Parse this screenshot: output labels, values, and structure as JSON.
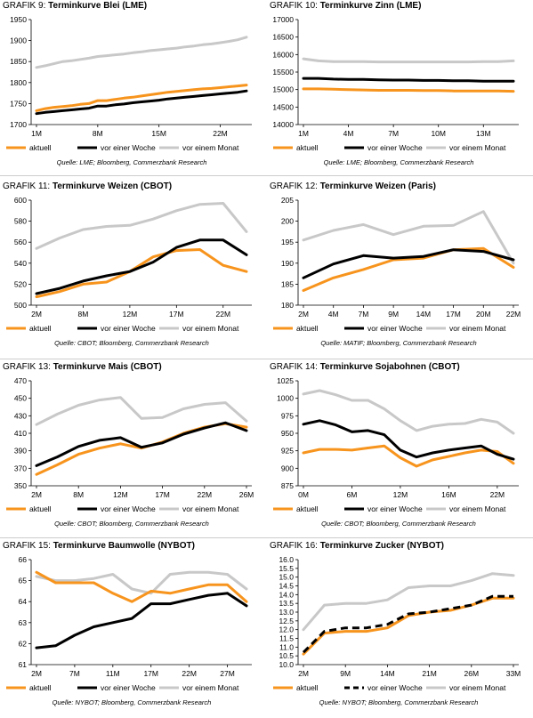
{
  "chart_data": [
    {
      "type": "line",
      "prefix": "GRAFIK 9:",
      "title": "Terminkurve Blei (LME)",
      "source": "Quelle: LME; Bloomberg, Commerzbank Research",
      "x_ticks": [
        "1M",
        "8M",
        "15M",
        "22M"
      ],
      "tick_idx": [
        0,
        7,
        14,
        21
      ],
      "ylim": [
        1700,
        1950
      ],
      "y_ticks": [
        1700,
        1750,
        1800,
        1850,
        1900,
        1950
      ],
      "series": [
        {
          "name": "aktuell",
          "color": "#f7941d",
          "dash": false,
          "values": [
            1733,
            1738,
            1741,
            1743,
            1745,
            1748,
            1750,
            1757,
            1757,
            1760,
            1763,
            1765,
            1768,
            1771,
            1774,
            1777,
            1779,
            1781,
            1783,
            1785,
            1786,
            1788,
            1790,
            1792,
            1794
          ]
        },
        {
          "name": "vor einer Woche",
          "color": "#000000",
          "dash": false,
          "values": [
            1726,
            1729,
            1731,
            1733,
            1735,
            1737,
            1739,
            1744,
            1744,
            1747,
            1749,
            1752,
            1754,
            1756,
            1758,
            1761,
            1763,
            1765,
            1767,
            1769,
            1771,
            1773,
            1775,
            1777,
            1780
          ]
        },
        {
          "name": "vor einem Monat",
          "color": "#c8c8c8",
          "dash": false,
          "values": [
            1836,
            1840,
            1845,
            1850,
            1852,
            1855,
            1858,
            1862,
            1864,
            1866,
            1868,
            1871,
            1873,
            1876,
            1878,
            1880,
            1882,
            1885,
            1887,
            1890,
            1892,
            1895,
            1898,
            1902,
            1908
          ]
        }
      ]
    },
    {
      "type": "line",
      "prefix": "GRAFIK 10:",
      "title": "Terminkurve Zinn (LME)",
      "source": "Quelle: LME; Bloomberg, Commerzbank Research",
      "x_ticks": [
        "1M",
        "4M",
        "7M",
        "10M",
        "13M"
      ],
      "tick_idx": [
        0,
        3,
        6,
        9,
        12
      ],
      "ylim": [
        14000,
        17000
      ],
      "y_ticks": [
        14000,
        14500,
        15000,
        15500,
        16000,
        16500,
        17000
      ],
      "series": [
        {
          "name": "aktuell",
          "color": "#f7941d",
          "dash": false,
          "values": [
            15020,
            15020,
            15010,
            15000,
            14990,
            14980,
            14980,
            14980,
            14970,
            14970,
            14960,
            14960,
            14960,
            14960,
            14950
          ]
        },
        {
          "name": "vor einer Woche",
          "color": "#000000",
          "dash": false,
          "values": [
            15320,
            15320,
            15300,
            15290,
            15290,
            15280,
            15270,
            15270,
            15260,
            15260,
            15250,
            15250,
            15240,
            15240,
            15240
          ]
        },
        {
          "name": "vor einem Monat",
          "color": "#c8c8c8",
          "dash": false,
          "values": [
            15880,
            15820,
            15800,
            15800,
            15800,
            15790,
            15790,
            15790,
            15790,
            15790,
            15790,
            15790,
            15800,
            15800,
            15820
          ]
        }
      ]
    },
    {
      "type": "line",
      "prefix": "GRAFIK 11:",
      "title": "Terminkurve Weizen (CBOT)",
      "source": "Quelle: CBOT; Bloomberg, Commerzbank Research",
      "x_ticks": [
        "2M",
        "8M",
        "12M",
        "17M",
        "22M"
      ],
      "tick_idx": [
        0,
        2,
        4,
        6,
        8
      ],
      "ylim": [
        500,
        600
      ],
      "y_ticks": [
        500,
        520,
        540,
        560,
        580,
        600
      ],
      "series": [
        {
          "name": "aktuell",
          "color": "#f7941d",
          "dash": false,
          "values": [
            508,
            513,
            520,
            522,
            532,
            546,
            552,
            553,
            538,
            532
          ]
        },
        {
          "name": "vor einer Woche",
          "color": "#000000",
          "dash": false,
          "values": [
            511,
            516,
            523,
            528,
            532,
            541,
            555,
            562,
            562,
            548
          ]
        },
        {
          "name": "vor einem Monat",
          "color": "#c8c8c8",
          "dash": false,
          "values": [
            554,
            564,
            572,
            575,
            576,
            582,
            590,
            596,
            597,
            570
          ]
        }
      ]
    },
    {
      "type": "line",
      "prefix": "GRAFIK 12:",
      "title": "Terminkurve Weizen (Paris)",
      "source": "Quelle: MATIF; Bloomberg, Commerzbank Research",
      "x_ticks": [
        "2M",
        "4M",
        "7M",
        "9M",
        "14M",
        "17M",
        "20M",
        "22M"
      ],
      "tick_idx": [
        0,
        1,
        2,
        3,
        4,
        5,
        6,
        7
      ],
      "ylim": [
        180,
        205
      ],
      "y_ticks": [
        180,
        185,
        190,
        195,
        200,
        205
      ],
      "series": [
        {
          "name": "aktuell",
          "color": "#f7941d",
          "dash": false,
          "values": [
            183.5,
            186.5,
            188.5,
            190.8,
            191.2,
            193.2,
            193.5,
            189.0
          ]
        },
        {
          "name": "vor einer Woche",
          "color": "#000000",
          "dash": false,
          "values": [
            186.5,
            189.8,
            191.8,
            191.2,
            191.6,
            193.2,
            192.8,
            190.8
          ]
        },
        {
          "name": "vor einem Monat",
          "color": "#c8c8c8",
          "dash": false,
          "values": [
            195.5,
            197.8,
            199.2,
            196.8,
            198.8,
            199.0,
            202.3,
            190.0
          ]
        }
      ]
    },
    {
      "type": "line",
      "prefix": "GRAFIK 13:",
      "title": "Terminkurve Mais (CBOT)",
      "source": "Quelle: CBOT; Bloomberg, Commerzbank Research",
      "x_ticks": [
        "2M",
        "8M",
        "12M",
        "17M",
        "22M",
        "26M"
      ],
      "tick_idx": [
        0,
        2,
        4,
        6,
        8,
        10
      ],
      "ylim": [
        350,
        470
      ],
      "y_ticks": [
        350,
        370,
        390,
        410,
        430,
        450,
        470
      ],
      "series": [
        {
          "name": "aktuell",
          "color": "#f7941d",
          "dash": false,
          "values": [
            363,
            374,
            386,
            393,
            398,
            393,
            400,
            410,
            417,
            421,
            417
          ]
        },
        {
          "name": "vor einer Woche",
          "color": "#000000",
          "dash": false,
          "values": [
            373,
            383,
            395,
            402,
            405,
            394,
            399,
            409,
            416,
            422,
            413
          ]
        },
        {
          "name": "vor einem Monat",
          "color": "#c8c8c8",
          "dash": false,
          "values": [
            420,
            432,
            442,
            448,
            451,
            427,
            428,
            438,
            443,
            445,
            424
          ]
        }
      ]
    },
    {
      "type": "line",
      "prefix": "GRAFIK 14:",
      "title": "Terminkurve Sojabohnen (CBOT)",
      "source": "Quelle: CBOT; Bloomberg, Commerzbank Research",
      "x_ticks": [
        "0M",
        "6M",
        "12M",
        "16M",
        "22M"
      ],
      "tick_idx": [
        0,
        3,
        6,
        9,
        12
      ],
      "ylim": [
        875,
        1025
      ],
      "y_ticks": [
        875,
        900,
        925,
        950,
        975,
        1000,
        1025
      ],
      "series": [
        {
          "name": "aktuell",
          "color": "#f7941d",
          "dash": false,
          "values": [
            922,
            927,
            927,
            926,
            929,
            932,
            915,
            903,
            912,
            917,
            922,
            926,
            924,
            907
          ]
        },
        {
          "name": "vor einer Woche",
          "color": "#000000",
          "dash": false,
          "values": [
            963,
            968,
            962,
            952,
            954,
            948,
            926,
            916,
            922,
            926,
            929,
            932,
            920,
            913
          ]
        },
        {
          "name": "vor einem Monat",
          "color": "#c8c8c8",
          "dash": false,
          "values": [
            1006,
            1011,
            1005,
            997,
            997,
            985,
            968,
            954,
            960,
            963,
            964,
            970,
            966,
            950
          ]
        }
      ]
    },
    {
      "type": "line",
      "prefix": "GRAFIK 15:",
      "title": "Terminkurve Baumwolle (NYBOT)",
      "source": "Quelle: NYBOT; Bloomberg, Commerzbank Research",
      "x_ticks": [
        "2M",
        "7M",
        "11M",
        "17M",
        "22M",
        "27M"
      ],
      "tick_idx": [
        0,
        2,
        4,
        6,
        8,
        10
      ],
      "ylim": [
        61,
        66
      ],
      "y_ticks": [
        61,
        62,
        63,
        64,
        65,
        66
      ],
      "series": [
        {
          "name": "aktuell",
          "color": "#f7941d",
          "dash": false,
          "values": [
            65.4,
            64.9,
            64.9,
            64.9,
            64.4,
            64.0,
            64.5,
            64.4,
            64.6,
            64.8,
            64.8,
            64.0
          ]
        },
        {
          "name": "vor einer Woche",
          "color": "#000000",
          "dash": false,
          "values": [
            61.8,
            61.9,
            62.4,
            62.8,
            63.0,
            63.2,
            63.9,
            63.9,
            64.1,
            64.3,
            64.4,
            63.8
          ]
        },
        {
          "name": "vor einem Monat",
          "color": "#c8c8c8",
          "dash": false,
          "values": [
            65.2,
            65.0,
            65.0,
            65.1,
            65.3,
            64.6,
            64.4,
            65.3,
            65.4,
            65.4,
            65.3,
            64.6
          ]
        }
      ]
    },
    {
      "type": "line",
      "prefix": "GRAFIK 16:",
      "title": "Terminkurve Zucker (NYBOT)",
      "source": "Quelle: NYBOT; Bloomberg, Commerzbank Research",
      "x_ticks": [
        "2M",
        "9M",
        "14M",
        "21M",
        "26M",
        "33M"
      ],
      "tick_idx": [
        0,
        2,
        4,
        6,
        8,
        10
      ],
      "ylim": [
        10.0,
        16.0
      ],
      "y_ticks": [
        10.0,
        10.5,
        11.0,
        11.5,
        12.0,
        12.5,
        13.0,
        13.5,
        14.0,
        14.5,
        15.0,
        15.5,
        16.0
      ],
      "series": [
        {
          "name": "aktuell",
          "color": "#f7941d",
          "dash": false,
          "values": [
            10.6,
            11.8,
            11.9,
            11.9,
            12.1,
            12.8,
            13.0,
            13.1,
            13.4,
            13.8,
            13.8
          ]
        },
        {
          "name": "vor einer Woche",
          "color": "#000000",
          "dash": true,
          "values": [
            10.7,
            11.9,
            12.1,
            12.1,
            12.3,
            12.9,
            13.0,
            13.2,
            13.4,
            13.9,
            13.9
          ]
        },
        {
          "name": "vor einem Monat",
          "color": "#c8c8c8",
          "dash": false,
          "values": [
            12.0,
            13.4,
            13.5,
            13.5,
            13.7,
            14.4,
            14.5,
            14.5,
            14.8,
            15.2,
            15.1
          ]
        }
      ]
    }
  ]
}
